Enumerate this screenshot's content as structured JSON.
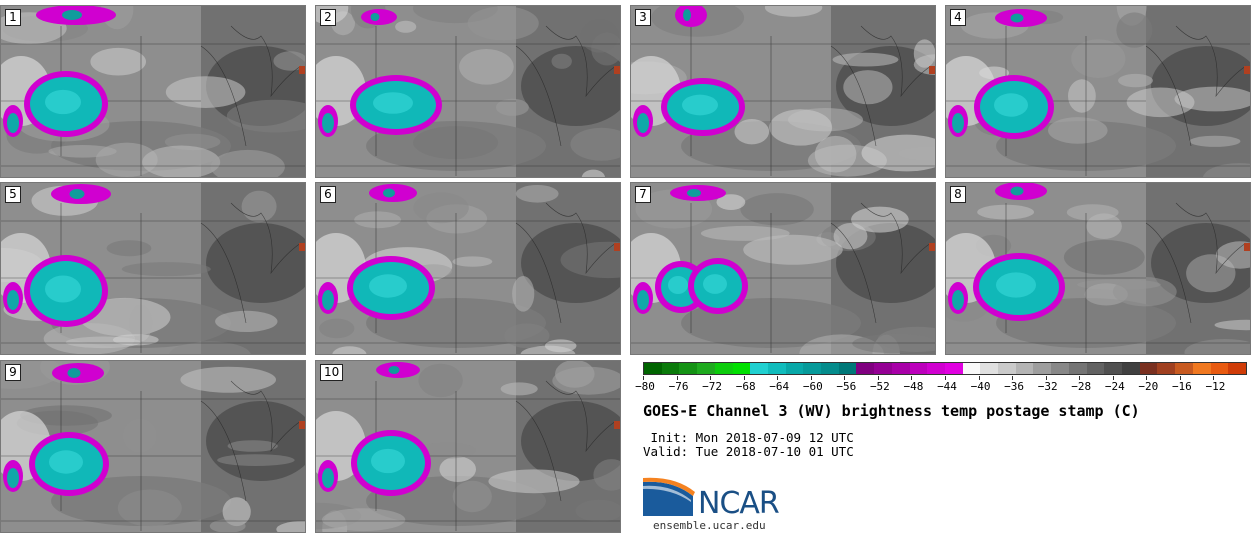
{
  "panels": [
    {
      "label": "1",
      "storms": [
        [
          65,
          103,
          36,
          27
        ]
      ],
      "north": [
        [
          75,
          14,
          40,
          10
        ]
      ]
    },
    {
      "label": "2",
      "storms": [
        [
          395,
          104,
          40,
          24
        ]
      ],
      "north": [
        [
          378,
          16,
          18,
          8
        ]
      ]
    },
    {
      "label": "3",
      "storms": [
        [
          702,
          106,
          36,
          23
        ]
      ],
      "north": [
        [
          690,
          14,
          16,
          12
        ]
      ]
    },
    {
      "label": "4",
      "storms": [
        [
          1013,
          106,
          34,
          26
        ]
      ],
      "north": [
        [
          1020,
          17,
          26,
          9
        ]
      ]
    },
    {
      "label": "5",
      "storms": [
        [
          65,
          290,
          36,
          30
        ]
      ],
      "north": [
        [
          80,
          193,
          30,
          10
        ]
      ]
    },
    {
      "label": "6",
      "storms": [
        [
          390,
          287,
          38,
          26
        ]
      ],
      "north": [
        [
          392,
          192,
          24,
          9
        ]
      ]
    },
    {
      "label": "7",
      "storms": [
        [
          680,
          286,
          20,
          20
        ],
        [
          717,
          285,
          24,
          22
        ]
      ],
      "north": [
        [
          697,
          192,
          28,
          8
        ]
      ]
    },
    {
      "label": "8",
      "storms": [
        [
          1018,
          286,
          40,
          28
        ]
      ],
      "north": [
        [
          1020,
          190,
          26,
          9
        ]
      ]
    },
    {
      "label": "9",
      "storms": [
        [
          68,
          463,
          34,
          26
        ]
      ],
      "north": [
        [
          77,
          372,
          26,
          10
        ]
      ]
    },
    {
      "label": "10",
      "storms": [
        [
          390,
          462,
          34,
          27
        ]
      ],
      "north": [
        [
          397,
          369,
          22,
          8
        ]
      ]
    }
  ],
  "colorbar": {
    "colors": [
      "#006400",
      "#0a7a0a",
      "#149214",
      "#1eaa1e",
      "#0ccc0c",
      "#00e000",
      "#20d0d0",
      "#10bcbc",
      "#08a8a8",
      "#069a9a",
      "#048c8c",
      "#007878",
      "#800080",
      "#940094",
      "#a800a8",
      "#bc00bc",
      "#d000d0",
      "#e000e0",
      "#f8f8f8",
      "#e0e0e0",
      "#cacaca",
      "#b4b4b4",
      "#9e9e9e",
      "#888888",
      "#747474",
      "#626262",
      "#505050",
      "#404040",
      "#7a3020",
      "#a04020",
      "#c85a20",
      "#f07820",
      "#e85a10",
      "#d03c08"
    ],
    "tick_labels": [
      "−80",
      "−76",
      "−72",
      "−68",
      "−64",
      "−60",
      "−56",
      "−52",
      "−48",
      "−44",
      "−40",
      "−36",
      "−32",
      "−28",
      "−24",
      "−20",
      "−16",
      "−12"
    ]
  },
  "title": "GOES-E Channel 3 (WV) brightness temp postage stamp (C)",
  "init": " Init: Mon 2018-07-09 12 UTC",
  "valid": "Valid: Tue 2018-07-10 01 UTC",
  "logo_text": "NCAR",
  "site": "ensemble.ucar.edu"
}
